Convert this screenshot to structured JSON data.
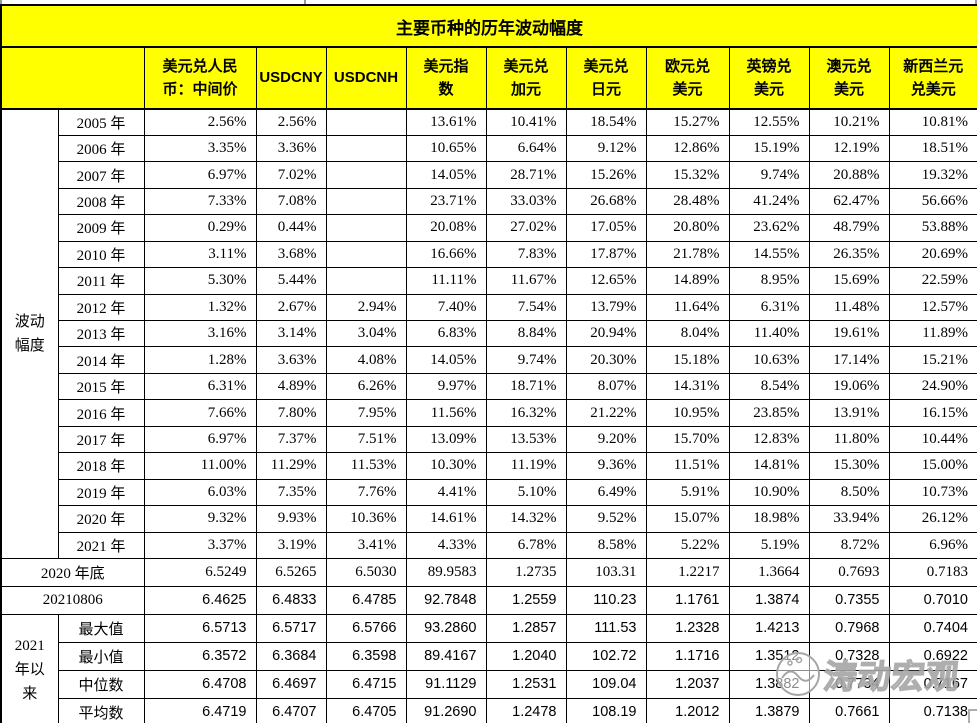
{
  "watermark": {
    "text": "涛动宏观"
  },
  "chart_data": {
    "type": "table",
    "title": "主要币种的历年波动幅度",
    "row_group_label": "波动\n幅度",
    "columns": [
      "美元兑人民\n币：中间价",
      "USDCNY",
      "USDCNH",
      "美元指\n数",
      "美元兑\n加元",
      "美元兑\n日元",
      "欧元兑\n美元",
      "英镑兑\n美元",
      "澳元兑\n美元",
      "新西兰元\n兑美元"
    ],
    "volatility_rows": [
      {
        "label": "2005 年",
        "values": [
          "2.56%",
          "2.56%",
          "",
          "13.61%",
          "10.41%",
          "18.54%",
          "15.27%",
          "12.55%",
          "10.21%",
          "10.81%"
        ]
      },
      {
        "label": "2006 年",
        "values": [
          "3.35%",
          "3.36%",
          "",
          "10.65%",
          "6.64%",
          "9.12%",
          "12.86%",
          "15.19%",
          "12.19%",
          "18.51%"
        ]
      },
      {
        "label": "2007 年",
        "values": [
          "6.97%",
          "7.02%",
          "",
          "14.05%",
          "28.71%",
          "15.26%",
          "15.32%",
          "9.74%",
          "20.88%",
          "19.32%"
        ]
      },
      {
        "label": "2008 年",
        "values": [
          "7.33%",
          "7.08%",
          "",
          "23.71%",
          "33.03%",
          "26.68%",
          "28.48%",
          "41.24%",
          "62.47%",
          "56.66%"
        ]
      },
      {
        "label": "2009 年",
        "values": [
          "0.29%",
          "0.44%",
          "",
          "20.08%",
          "27.02%",
          "17.05%",
          "20.80%",
          "23.62%",
          "48.79%",
          "53.88%"
        ]
      },
      {
        "label": "2010 年",
        "values": [
          "3.11%",
          "3.68%",
          "",
          "16.66%",
          "7.83%",
          "17.87%",
          "21.78%",
          "14.55%",
          "26.35%",
          "20.69%"
        ]
      },
      {
        "label": "2011 年",
        "values": [
          "5.30%",
          "5.44%",
          "",
          "11.11%",
          "11.67%",
          "12.65%",
          "14.89%",
          "8.95%",
          "15.69%",
          "22.59%"
        ]
      },
      {
        "label": "2012 年",
        "values": [
          "1.32%",
          "2.67%",
          "2.94%",
          "7.40%",
          "7.54%",
          "13.79%",
          "11.64%",
          "6.31%",
          "11.48%",
          "12.57%"
        ]
      },
      {
        "label": "2013 年",
        "values": [
          "3.16%",
          "3.14%",
          "3.04%",
          "6.83%",
          "8.84%",
          "20.94%",
          "8.04%",
          "11.40%",
          "19.61%",
          "11.89%"
        ]
      },
      {
        "label": "2014 年",
        "values": [
          "1.28%",
          "3.63%",
          "4.08%",
          "14.05%",
          "9.74%",
          "20.30%",
          "15.18%",
          "10.63%",
          "17.14%",
          "15.21%"
        ]
      },
      {
        "label": "2015 年",
        "values": [
          "6.31%",
          "4.89%",
          "6.26%",
          "9.97%",
          "18.71%",
          "8.07%",
          "14.31%",
          "8.54%",
          "19.06%",
          "24.90%"
        ]
      },
      {
        "label": "2016 年",
        "values": [
          "7.66%",
          "7.80%",
          "7.95%",
          "11.56%",
          "16.32%",
          "21.22%",
          "10.95%",
          "23.85%",
          "13.91%",
          "16.15%"
        ]
      },
      {
        "label": "2017 年",
        "values": [
          "6.97%",
          "7.37%",
          "7.51%",
          "13.09%",
          "13.53%",
          "9.20%",
          "15.70%",
          "12.83%",
          "11.80%",
          "10.44%"
        ]
      },
      {
        "label": "2018 年",
        "values": [
          "11.00%",
          "11.29%",
          "11.53%",
          "10.30%",
          "11.19%",
          "9.36%",
          "11.51%",
          "14.81%",
          "15.30%",
          "15.00%"
        ]
      },
      {
        "label": "2019 年",
        "values": [
          "6.03%",
          "7.35%",
          "7.76%",
          "4.41%",
          "5.10%",
          "6.49%",
          "5.91%",
          "10.90%",
          "8.50%",
          "10.73%"
        ]
      },
      {
        "label": "2020 年",
        "values": [
          "9.32%",
          "9.93%",
          "10.36%",
          "14.61%",
          "14.32%",
          "9.52%",
          "15.07%",
          "18.98%",
          "33.94%",
          "26.12%"
        ]
      },
      {
        "label": "2021 年",
        "values": [
          "3.37%",
          "3.19%",
          "3.41%",
          "4.33%",
          "6.78%",
          "8.58%",
          "5.22%",
          "5.19%",
          "8.72%",
          "6.96%"
        ]
      }
    ],
    "summary_rows": [
      {
        "label": "2020 年底",
        "values": [
          "6.5249",
          "6.5265",
          "6.5030",
          "89.9583",
          "1.2735",
          "103.31",
          "1.2217",
          "1.3664",
          "0.7693",
          "0.7183"
        ]
      },
      {
        "label": "20210806",
        "values": [
          "6.4625",
          "6.4833",
          "6.4785",
          "92.7848",
          "1.2559",
          "110.23",
          "1.1761",
          "1.3874",
          "0.7355",
          "0.7010"
        ]
      }
    ],
    "since_2021": {
      "label": "2021\n年以\n来",
      "rows": [
        {
          "label": "最大值",
          "values": [
            "6.5713",
            "6.5717",
            "6.5766",
            "93.2860",
            "1.2857",
            "111.53",
            "1.2328",
            "1.4213",
            "0.7968",
            "0.7404"
          ]
        },
        {
          "label": "最小值",
          "values": [
            "6.3572",
            "6.3684",
            "6.3598",
            "89.4167",
            "1.2040",
            "102.72",
            "1.1716",
            "1.3512",
            "0.7328",
            "0.6922"
          ]
        },
        {
          "label": "中位数",
          "values": [
            "6.4708",
            "6.4697",
            "6.4715",
            "91.1129",
            "1.2531",
            "109.04",
            "1.2037",
            "1.3882",
            "0.7734",
            "0.7167"
          ]
        },
        {
          "label": "平均数",
          "values": [
            "6.4719",
            "6.4707",
            "6.4705",
            "91.2690",
            "1.2478",
            "108.19",
            "1.2012",
            "1.3879",
            "0.7661",
            "0.7138"
          ]
        }
      ]
    },
    "colors": {
      "header_bg": "#ffff00",
      "border": "#000000",
      "watermark_gray": "#a6a6a6"
    },
    "layout": {
      "legend": "none",
      "grid": "on"
    }
  }
}
